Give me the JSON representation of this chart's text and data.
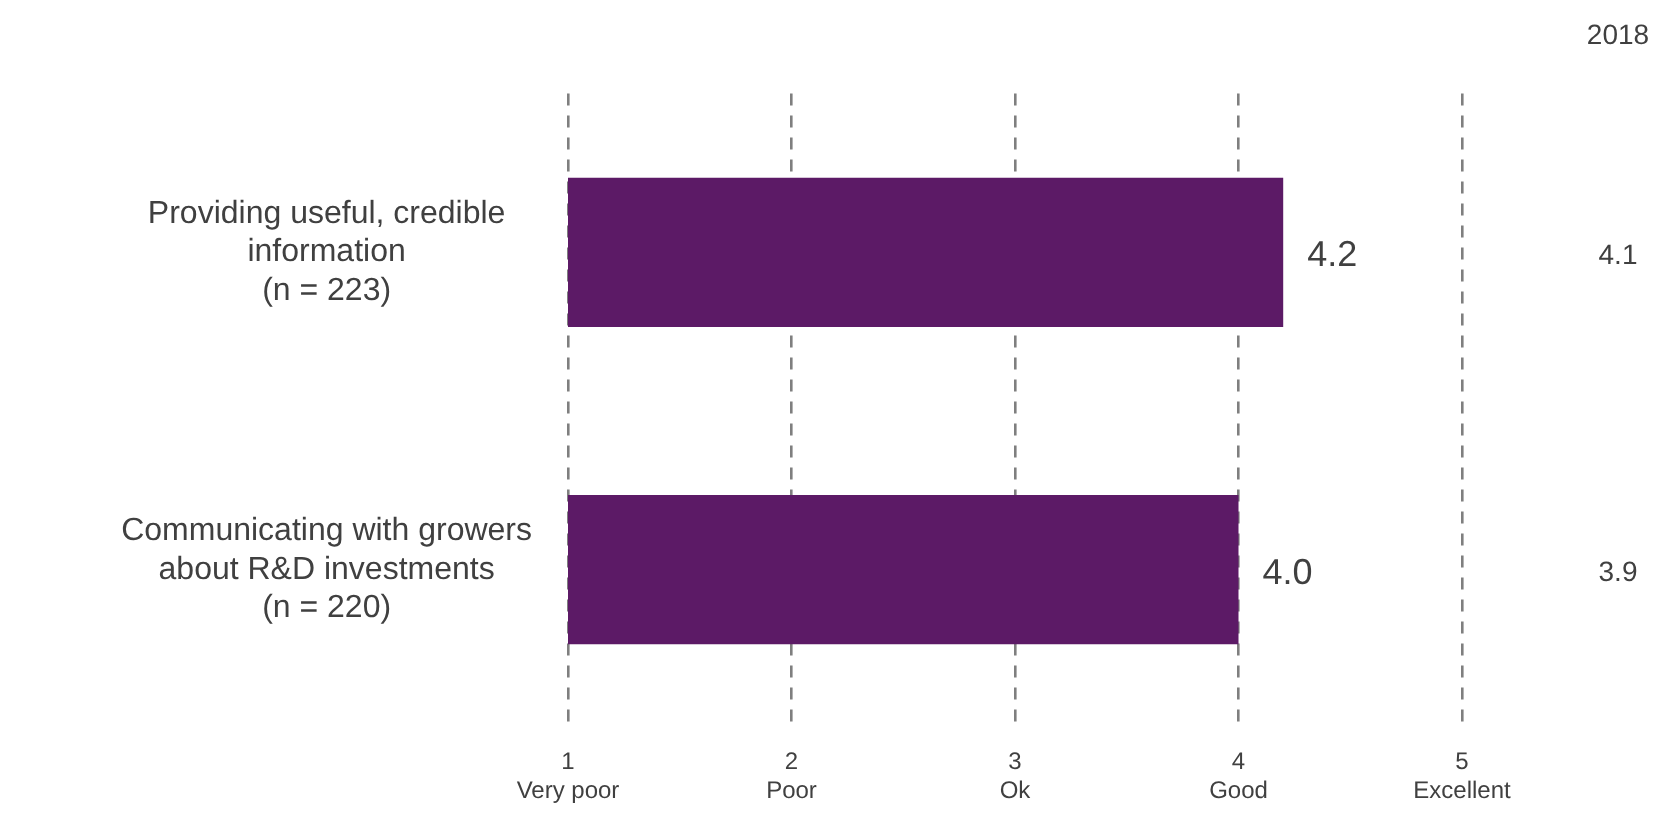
{
  "chart_data": {
    "type": "bar",
    "orientation": "horizontal",
    "categories": [
      "Providing useful, credible information (n = 223)",
      "Communicating with growers about R&D investments (n = 220)"
    ],
    "values": [
      4.2,
      4.0
    ],
    "color": "#5c1a66",
    "value_labels": [
      "4.2",
      "4.0"
    ],
    "xlim": [
      1,
      5
    ],
    "xticks": [
      {
        "value": 1,
        "label": "1\nVery poor"
      },
      {
        "value": 2,
        "label": "2\nPoor"
      },
      {
        "value": 3,
        "label": "3\nOk"
      },
      {
        "value": 4,
        "label": "4\nGood"
      },
      {
        "value": 5,
        "label": "5\nExcellent"
      }
    ],
    "grid": "x",
    "legend": false,
    "annotations": [
      "2018",
      "4.1",
      "3.9"
    ]
  }
}
